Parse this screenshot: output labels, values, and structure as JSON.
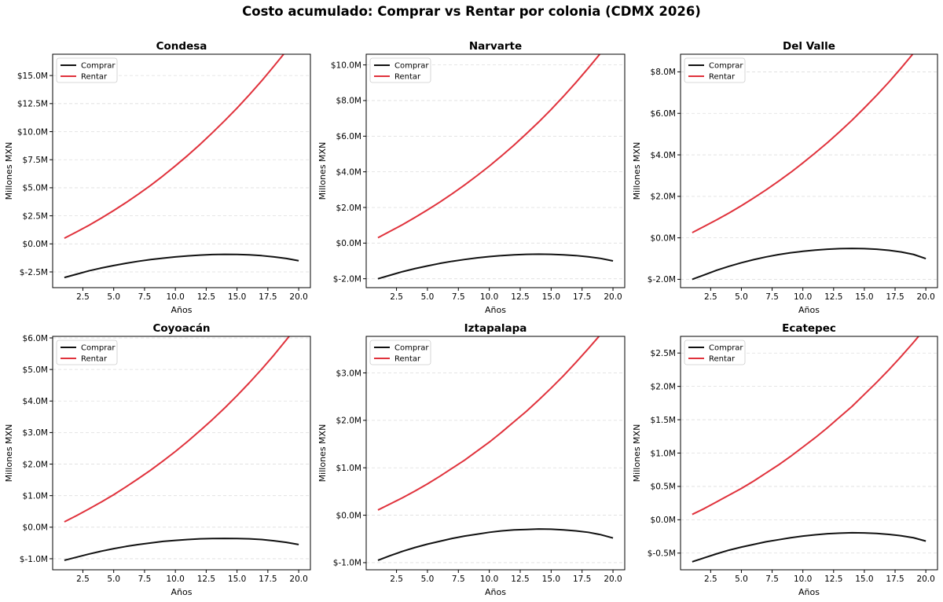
{
  "title": "Costo acumulado: Comprar vs Rentar por colonia (CDMX 2026)",
  "colors": {
    "comprar": "#111111",
    "rentar": "#e0323c",
    "grid": "#dddddd"
  },
  "chart_data": [
    {
      "type": "line",
      "title": "Condesa",
      "xlabel": "Años",
      "ylabel": "Millones MXN",
      "xlim": [
        0.05,
        20.95
      ],
      "ylim": [
        -3.9,
        16.9
      ],
      "xticks": [
        2.5,
        5.0,
        7.5,
        10.0,
        12.5,
        15.0,
        17.5,
        20.0
      ],
      "xtick_labels": [
        "2.5",
        "5.0",
        "7.5",
        "10.0",
        "12.5",
        "15.0",
        "17.5",
        "20.0"
      ],
      "yticks": [
        -2.5,
        0,
        2.5,
        5,
        7.5,
        10,
        12.5,
        15
      ],
      "ytick_labels": [
        "$-2.5M",
        "$0.0M",
        "$2.5M",
        "$5.0M",
        "$7.5M",
        "$10.0M",
        "$12.5M",
        "$15.0M"
      ],
      "grid": "y",
      "legend": "upper-left",
      "x": [
        1,
        2,
        3,
        4,
        5,
        6,
        7,
        8,
        9,
        10,
        11,
        12,
        13,
        14,
        15,
        16,
        17,
        18,
        19,
        20
      ],
      "series": [
        {
          "name": "Comprar",
          "values": [
            -3.0,
            -2.7,
            -2.4,
            -2.15,
            -1.93,
            -1.73,
            -1.55,
            -1.4,
            -1.27,
            -1.16,
            -1.07,
            -1.0,
            -0.95,
            -0.93,
            -0.94,
            -0.98,
            -1.05,
            -1.16,
            -1.3,
            -1.5
          ]
        },
        {
          "name": "Rentar",
          "values": [
            0.5,
            1.07,
            1.66,
            2.3,
            2.97,
            3.68,
            4.43,
            5.22,
            6.06,
            6.95,
            7.88,
            8.86,
            9.9,
            10.98,
            12.1,
            13.29,
            14.53,
            15.85,
            17.2,
            18.64
          ]
        }
      ]
    },
    {
      "type": "line",
      "title": "Narvarte",
      "xlabel": "Años",
      "ylabel": "Millones MXN",
      "xlim": [
        0.05,
        20.95
      ],
      "ylim": [
        -2.5,
        10.6
      ],
      "xticks": [
        2.5,
        5.0,
        7.5,
        10.0,
        12.5,
        15.0,
        17.5,
        20.0
      ],
      "xtick_labels": [
        "2.5",
        "5.0",
        "7.5",
        "10.0",
        "12.5",
        "15.0",
        "17.5",
        "20.0"
      ],
      "yticks": [
        -2,
        0,
        2,
        4,
        6,
        8,
        10
      ],
      "ytick_labels": [
        "$-2.0M",
        "$0.0M",
        "$2.0M",
        "$4.0M",
        "$6.0M",
        "$8.0M",
        "$10.0M"
      ],
      "grid": "y",
      "legend": "upper-left",
      "x": [
        1,
        2,
        3,
        4,
        5,
        6,
        7,
        8,
        9,
        10,
        11,
        12,
        13,
        14,
        15,
        16,
        17,
        18,
        19,
        20
      ],
      "series": [
        {
          "name": "Comprar",
          "values": [
            -2.0,
            -1.8,
            -1.6,
            -1.43,
            -1.28,
            -1.14,
            -1.02,
            -0.92,
            -0.83,
            -0.76,
            -0.7,
            -0.66,
            -0.63,
            -0.62,
            -0.63,
            -0.66,
            -0.7,
            -0.77,
            -0.86,
            -1.0
          ]
        },
        {
          "name": "Rentar",
          "values": [
            0.3,
            0.67,
            1.04,
            1.44,
            1.86,
            2.3,
            2.77,
            3.26,
            3.78,
            4.32,
            4.9,
            5.5,
            6.14,
            6.8,
            7.5,
            8.24,
            9.01,
            9.82,
            10.66,
            11.55
          ]
        }
      ]
    },
    {
      "type": "line",
      "title": "Del Valle",
      "xlabel": "Años",
      "ylabel": "Millones MXN",
      "xlim": [
        0.05,
        20.95
      ],
      "ylim": [
        -2.4,
        8.85
      ],
      "xticks": [
        2.5,
        5.0,
        7.5,
        10.0,
        12.5,
        15.0,
        17.5,
        20.0
      ],
      "xtick_labels": [
        "2.5",
        "5.0",
        "7.5",
        "10.0",
        "12.5",
        "15.0",
        "17.5",
        "20.0"
      ],
      "yticks": [
        -2,
        0,
        2,
        4,
        6,
        8
      ],
      "ytick_labels": [
        "$-2.0M",
        "$0.0M",
        "$2.0M",
        "$4.0M",
        "$6.0M",
        "$8.0M"
      ],
      "grid": "y",
      "legend": "upper-left",
      "x": [
        1,
        2,
        3,
        4,
        5,
        6,
        7,
        8,
        9,
        10,
        11,
        12,
        13,
        14,
        15,
        16,
        17,
        18,
        19,
        20
      ],
      "series": [
        {
          "name": "Comprar",
          "values": [
            -2.0,
            -1.78,
            -1.56,
            -1.37,
            -1.2,
            -1.05,
            -0.92,
            -0.81,
            -0.72,
            -0.65,
            -0.59,
            -0.55,
            -0.52,
            -0.51,
            -0.52,
            -0.55,
            -0.6,
            -0.68,
            -0.8,
            -1.0
          ]
        },
        {
          "name": "Rentar",
          "values": [
            0.25,
            0.56,
            0.87,
            1.2,
            1.55,
            1.92,
            2.31,
            2.72,
            3.15,
            3.61,
            4.09,
            4.59,
            5.12,
            5.67,
            6.26,
            6.87,
            7.51,
            8.19,
            8.9,
            9.64
          ]
        }
      ]
    },
    {
      "type": "line",
      "title": "Coyoacán",
      "xlabel": "Años",
      "ylabel": "Millones MXN",
      "xlim": [
        0.05,
        20.95
      ],
      "ylim": [
        -1.35,
        6.05
      ],
      "xticks": [
        2.5,
        5.0,
        7.5,
        10.0,
        12.5,
        15.0,
        17.5,
        20.0
      ],
      "xtick_labels": [
        "2.5",
        "5.0",
        "7.5",
        "10.0",
        "12.5",
        "15.0",
        "17.5",
        "20.0"
      ],
      "yticks": [
        -1,
        0,
        1,
        2,
        3,
        4,
        5,
        6
      ],
      "ytick_labels": [
        "$-1.0M",
        "$0.0M",
        "$1.0M",
        "$2.0M",
        "$3.0M",
        "$4.0M",
        "$5.0M",
        "$6.0M"
      ],
      "grid": "y",
      "legend": "upper-left",
      "x": [
        1,
        2,
        3,
        4,
        5,
        6,
        7,
        8,
        9,
        10,
        11,
        12,
        13,
        14,
        15,
        16,
        17,
        18,
        19,
        20
      ],
      "series": [
        {
          "name": "Comprar",
          "values": [
            -1.05,
            -0.95,
            -0.85,
            -0.76,
            -0.68,
            -0.61,
            -0.55,
            -0.5,
            -0.45,
            -0.42,
            -0.39,
            -0.37,
            -0.36,
            -0.355,
            -0.36,
            -0.37,
            -0.39,
            -0.43,
            -0.48,
            -0.55
          ]
        },
        {
          "name": "Rentar",
          "values": [
            0.17,
            0.37,
            0.58,
            0.8,
            1.03,
            1.28,
            1.54,
            1.81,
            2.1,
            2.4,
            2.72,
            3.06,
            3.41,
            3.78,
            4.17,
            4.58,
            5.01,
            5.46,
            5.94,
            6.43
          ]
        }
      ]
    },
    {
      "type": "line",
      "title": "Iztapalapa",
      "xlabel": "Años",
      "ylabel": "Millones MXN",
      "xlim": [
        0.05,
        20.95
      ],
      "ylim": [
        -1.15,
        3.77
      ],
      "xticks": [
        2.5,
        5.0,
        7.5,
        10.0,
        12.5,
        15.0,
        17.5,
        20.0
      ],
      "xtick_labels": [
        "2.5",
        "5.0",
        "7.5",
        "10.0",
        "12.5",
        "15.0",
        "17.5",
        "20.0"
      ],
      "yticks": [
        -1,
        0,
        1,
        2,
        3
      ],
      "ytick_labels": [
        "$-1.0M",
        "$0.0M",
        "$1.0M",
        "$2.0M",
        "$3.0M"
      ],
      "grid": "y",
      "legend": "upper-left",
      "x": [
        1,
        2,
        3,
        4,
        5,
        6,
        7,
        8,
        9,
        10,
        11,
        12,
        13,
        14,
        15,
        16,
        17,
        18,
        19,
        20
      ],
      "series": [
        {
          "name": "Comprar",
          "values": [
            -0.95,
            -0.85,
            -0.76,
            -0.68,
            -0.61,
            -0.55,
            -0.49,
            -0.44,
            -0.4,
            -0.36,
            -0.33,
            -0.31,
            -0.3,
            -0.29,
            -0.295,
            -0.31,
            -0.33,
            -0.36,
            -0.41,
            -0.48
          ]
        },
        {
          "name": "Rentar",
          "values": [
            0.11,
            0.24,
            0.37,
            0.51,
            0.66,
            0.82,
            0.99,
            1.16,
            1.35,
            1.54,
            1.75,
            1.97,
            2.19,
            2.43,
            2.68,
            2.94,
            3.22,
            3.51,
            3.81,
            4.13
          ]
        }
      ]
    },
    {
      "type": "line",
      "title": "Ecatepec",
      "xlabel": "Años",
      "ylabel": "Millones MXN",
      "xlim": [
        0.05,
        20.95
      ],
      "ylim": [
        -0.75,
        2.75
      ],
      "xticks": [
        2.5,
        5.0,
        7.5,
        10.0,
        12.5,
        15.0,
        17.5,
        20.0
      ],
      "xtick_labels": [
        "2.5",
        "5.0",
        "7.5",
        "10.0",
        "12.5",
        "15.0",
        "17.5",
        "20.0"
      ],
      "yticks": [
        -0.5,
        0,
        0.5,
        1,
        1.5,
        2,
        2.5
      ],
      "ytick_labels": [
        "$-0.5M",
        "$0.0M",
        "$0.5M",
        "$1.0M",
        "$1.5M",
        "$2.0M",
        "$2.5M"
      ],
      "grid": "y",
      "legend": "upper-left",
      "x": [
        1,
        2,
        3,
        4,
        5,
        6,
        7,
        8,
        9,
        10,
        11,
        12,
        13,
        14,
        15,
        16,
        17,
        18,
        19,
        20
      ],
      "series": [
        {
          "name": "Comprar",
          "values": [
            -0.63,
            -0.57,
            -0.51,
            -0.455,
            -0.41,
            -0.37,
            -0.33,
            -0.3,
            -0.27,
            -0.245,
            -0.225,
            -0.21,
            -0.2,
            -0.195,
            -0.197,
            -0.205,
            -0.22,
            -0.24,
            -0.27,
            -0.32
          ]
        },
        {
          "name": "Rentar",
          "values": [
            0.08,
            0.17,
            0.27,
            0.37,
            0.47,
            0.58,
            0.7,
            0.82,
            0.95,
            1.09,
            1.23,
            1.38,
            1.54,
            1.7,
            1.88,
            2.06,
            2.25,
            2.45,
            2.66,
            2.88
          ]
        }
      ]
    }
  ]
}
